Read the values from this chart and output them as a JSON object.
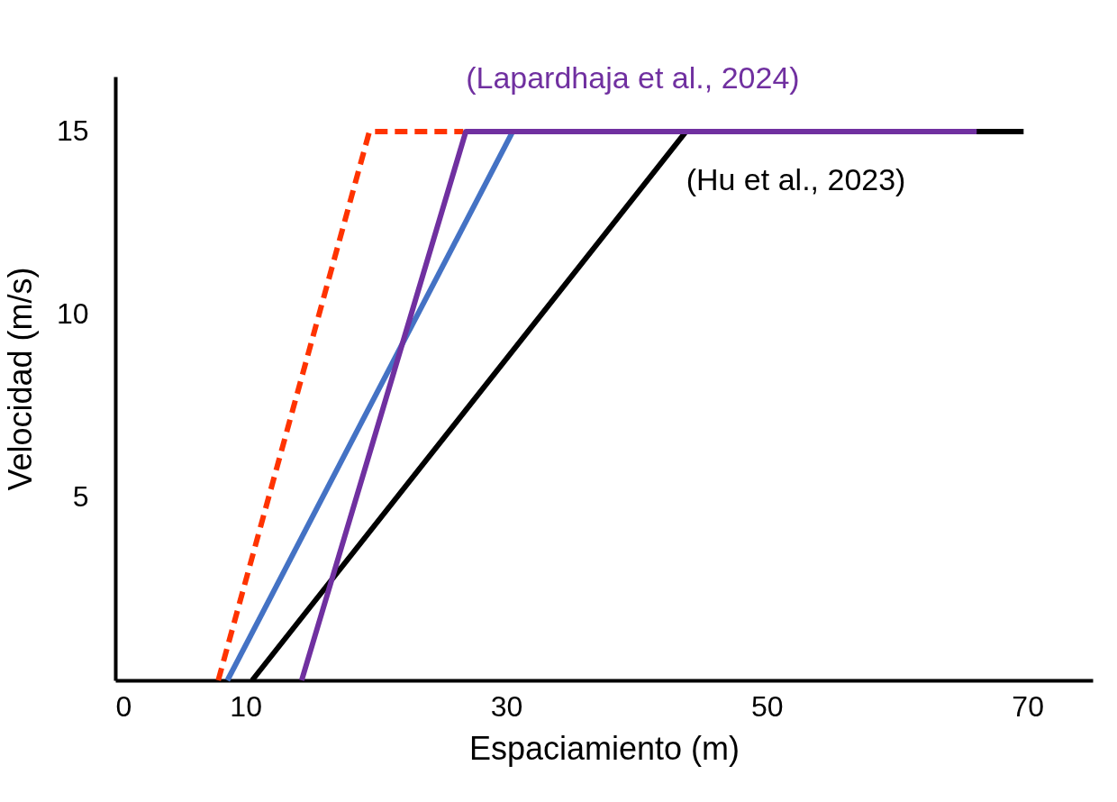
{
  "chart_data": {
    "type": "line",
    "xlabel": "Espaciamiento (m)",
    "ylabel": "Velocidad (m/s)",
    "xlim": [
      0,
      75
    ],
    "xticks": [
      0,
      10,
      30,
      50,
      70
    ],
    "ylim": [
      0,
      16.5
    ],
    "yticks": [
      5,
      10,
      15
    ],
    "grid": false,
    "marker": "none",
    "series": [
      {
        "color": "#ff3300",
        "line_style": "dashed",
        "x": [
          7.9,
          19.5,
          26.7
        ],
        "values": [
          0,
          15,
          15
        ]
      },
      {
        "color": "#4472c4",
        "line_style": "solid",
        "x": [
          8.6,
          30.5
        ],
        "values": [
          0,
          15
        ]
      },
      {
        "name": "(Hu et al., 2023)",
        "color": "#000000",
        "line_style": "solid",
        "x": [
          10.5,
          43.8,
          69.7
        ],
        "values": [
          0,
          15,
          15
        ]
      },
      {
        "name": "(Lapardhaja et al., 2024)",
        "color": "#7030a0",
        "line_style": "solid",
        "x": [
          14.3,
          26.9,
          66.1
        ],
        "values": [
          0,
          15,
          15
        ]
      }
    ]
  }
}
